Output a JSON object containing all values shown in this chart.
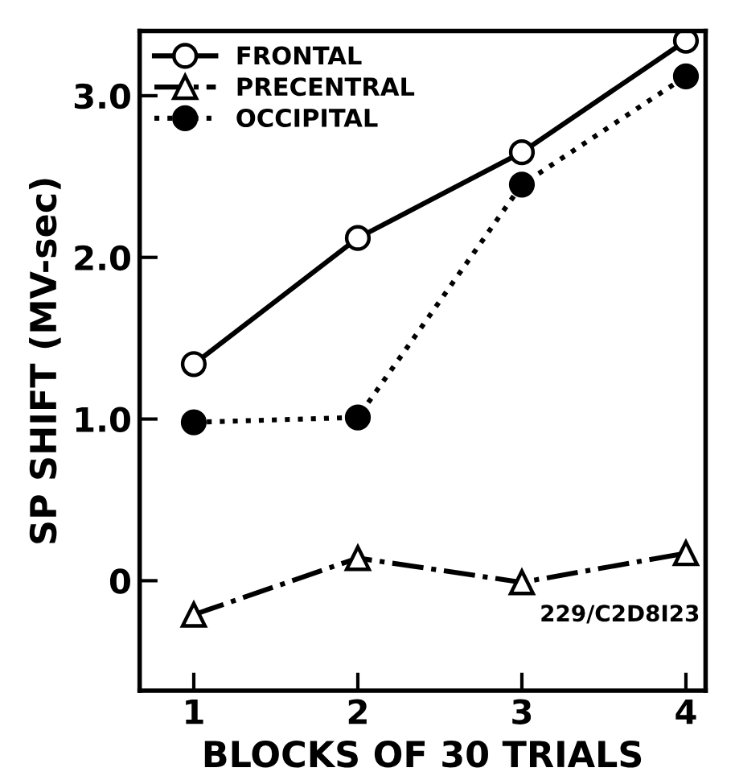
{
  "chart_data": {
    "type": "line",
    "xlabel": "BLOCKS OF 30 TRIALS",
    "ylabel": "SP SHIFT (MV-sec)",
    "x": [
      1,
      2,
      3,
      4
    ],
    "xlim": [
      0.67,
      4.12
    ],
    "xticks": [
      1,
      2,
      3,
      4
    ],
    "ylim": [
      -0.68,
      3.4
    ],
    "yticks": [
      0,
      {
        "value": 1,
        "label": "1.0"
      },
      {
        "value": 2,
        "label": "2.0"
      },
      {
        "value": 3,
        "label": "3.0"
      }
    ],
    "series": [
      {
        "name": "FRONTAL",
        "color": "#000000",
        "values": [
          1.34,
          2.12,
          2.65,
          3.34
        ],
        "marker": "circle",
        "line_style": "solid"
      },
      {
        "name": "PRECENTRAL",
        "color": "#000000",
        "values": [
          -0.21,
          0.14,
          -0.01,
          0.17
        ],
        "marker": "triangle",
        "line_style": "dashdot"
      },
      {
        "name": "OCCIPITAL",
        "color": "#000000",
        "values": [
          0.98,
          1.01,
          2.45,
          3.12
        ],
        "marker": "circle",
        "line_style": "dotted"
      }
    ],
    "legend": "top left",
    "grid": false,
    "annotations": [
      "229/C2D8I23"
    ]
  }
}
